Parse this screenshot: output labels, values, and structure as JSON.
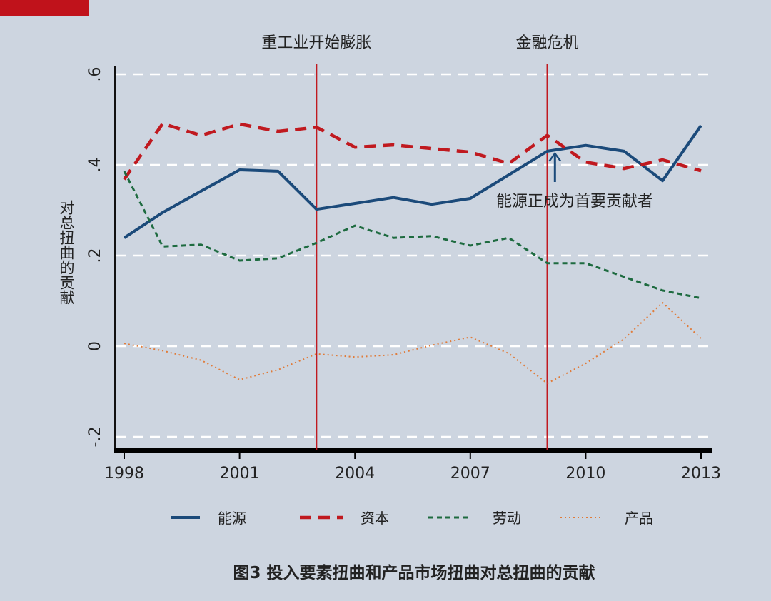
{
  "chart_data": {
    "type": "line",
    "title": "图3  投入要素扭曲和产品市场扭曲对总扭曲的贡献",
    "xlabel": "",
    "ylabel": "对总扭曲的贡献",
    "xlim": [
      1998,
      2013
    ],
    "ylim": [
      -0.2,
      0.6
    ],
    "x_ticks": [
      1998,
      2001,
      2004,
      2007,
      2010,
      2013
    ],
    "y_ticks": [
      {
        "v": 0.6,
        "label": ".6"
      },
      {
        "v": 0.4,
        "label": ".4"
      },
      {
        "v": 0.2,
        "label": ".2"
      },
      {
        "v": 0,
        "label": "0"
      },
      {
        "v": -0.2,
        "label": "-.2"
      }
    ],
    "grid": "horizontal dashed white",
    "legend_placement": "bottom",
    "x": [
      1998,
      1999,
      2000,
      2001,
      2002,
      2003,
      2004,
      2005,
      2006,
      2007,
      2008,
      2009,
      2010,
      2011,
      2012,
      2013
    ],
    "series": [
      {
        "name": "能源",
        "color": "#1b4a7a",
        "style": "solid",
        "values": [
          0.239,
          0.295,
          0.342,
          0.389,
          0.386,
          0.302,
          0.315,
          0.328,
          0.313,
          0.326,
          0.378,
          0.43,
          0.443,
          0.43,
          0.365,
          0.487
        ]
      },
      {
        "name": "资本",
        "color": "#c0191f",
        "style": "dashed",
        "values": [
          0.368,
          0.491,
          0.465,
          0.49,
          0.474,
          0.483,
          0.439,
          0.444,
          0.436,
          0.428,
          0.403,
          0.465,
          0.406,
          0.392,
          0.411,
          0.387
        ]
      },
      {
        "name": "劳动",
        "color": "#1e6b40",
        "style": "short-dashed",
        "values": [
          0.386,
          0.22,
          0.224,
          0.189,
          0.194,
          0.228,
          0.266,
          0.239,
          0.243,
          0.222,
          0.239,
          0.183,
          0.183,
          0.153,
          0.123,
          0.106
        ]
      },
      {
        "name": "产品",
        "color": "#e07b39",
        "style": "dotted",
        "values": [
          0.006,
          -0.01,
          -0.031,
          -0.074,
          -0.052,
          -0.017,
          -0.024,
          -0.019,
          0.002,
          0.02,
          -0.016,
          -0.082,
          -0.038,
          0.016,
          0.096,
          0.017
        ]
      }
    ],
    "vlines": [
      {
        "x": 2003,
        "label": "重工业开始膨胀",
        "color": "#c0191f"
      },
      {
        "x": 2009,
        "label": "金融危机",
        "color": "#c0191f"
      }
    ],
    "annotations": [
      {
        "text": "能源正成为首要贡献者",
        "arrow_to": {
          "x": 2009.2,
          "y": 0.43
        }
      }
    ]
  },
  "accent_color": "#c0121b"
}
